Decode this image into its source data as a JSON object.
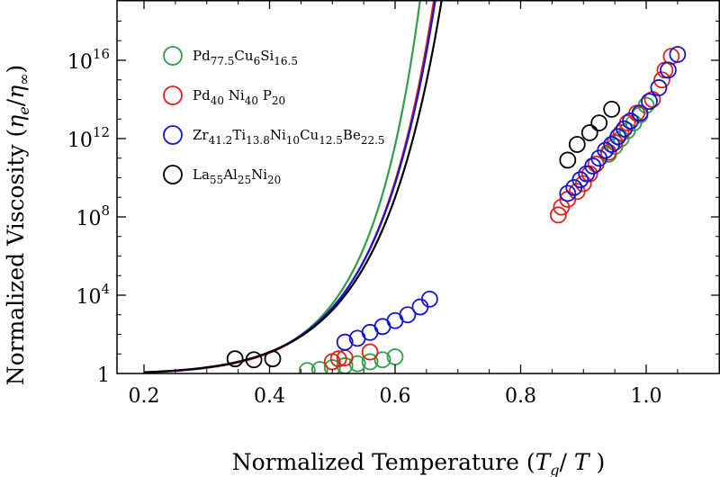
{
  "chart_data": {
    "type": "scatter",
    "xlabel": "Normalized Temperature (T_g/ T )",
    "xlabel_parts": {
      "prefix": "Normalized Temperature (",
      "var1": "T",
      "sub1": "g",
      "sep": "/ ",
      "var2": "T",
      "suffix": " )"
    },
    "ylabel": "Normalized Viscosity (η_e/η_∞)",
    "ylabel_parts": {
      "prefix": "Normalized Viscosity (",
      "num": "η",
      "num_sub": "e",
      "sep": "/",
      "den": "η",
      "den_sub": "∞",
      "suffix": ")"
    },
    "xlim": [
      0.2,
      1.1
    ],
    "ylim_log10": [
      0,
      18.5
    ],
    "x_ticks": [
      {
        "value": 0.2,
        "label": "0.2"
      },
      {
        "value": 0.4,
        "label": "0.4"
      },
      {
        "value": 0.6,
        "label": "0.6"
      },
      {
        "value": 0.8,
        "label": "0.8"
      },
      {
        "value": 1.0,
        "label": "1.0"
      }
    ],
    "y_ticks": [
      {
        "log10": 0,
        "base": "1",
        "exp": ""
      },
      {
        "log10": 4,
        "base": "10",
        "exp": "4"
      },
      {
        "log10": 8,
        "base": "10",
        "exp": "8"
      },
      {
        "log10": 12,
        "base": "10",
        "exp": "12"
      },
      {
        "log10": 16,
        "base": "10",
        "exp": "16"
      }
    ],
    "legend_position": "top-left",
    "series": [
      {
        "name": "Pd77.5Cu6Si16.5",
        "label_parts": [
          [
            "Pd",
            ""
          ],
          [
            "",
            "77.5"
          ],
          [
            "Cu",
            ""
          ],
          [
            "",
            "6"
          ],
          [
            "Si",
            ""
          ],
          [
            "",
            "16.5"
          ]
        ],
        "color": "#2e9e47",
        "fit": {
          "a": 1.02,
          "b": 0.032,
          "D": 3.0,
          "x_end": 1.083
        },
        "points_x": [
          0.46,
          0.48,
          0.5,
          0.52,
          0.54,
          0.56,
          0.58,
          0.6,
          0.94,
          0.95,
          0.96,
          0.97,
          0.98,
          0.99,
          1.0
        ],
        "points_log10": [
          0.15,
          0.2,
          0.3,
          0.4,
          0.5,
          0.6,
          0.7,
          0.85,
          11.2,
          11.6,
          12.0,
          12.4,
          12.8,
          13.2,
          13.7
        ]
      },
      {
        "name": "Pd40Ni40P20",
        "label_parts": [
          [
            "Pd",
            ""
          ],
          [
            "",
            "40"
          ],
          [
            " Ni",
            ""
          ],
          [
            "",
            "40"
          ],
          [
            " P",
            ""
          ],
          [
            "",
            "20"
          ]
        ],
        "color": "#e0221b",
        "fit": {
          "a": 1.2,
          "b": 0.056,
          "D": 3.21,
          "x_end": 1.075
        },
        "points_x": [
          0.5,
          0.51,
          0.52,
          0.56,
          0.86,
          0.865,
          0.875,
          0.89,
          0.9,
          0.91,
          0.92,
          0.94,
          0.95,
          0.96,
          0.97,
          0.985,
          1.01,
          1.025,
          1.03,
          1.04
        ],
        "points_log10": [
          0.6,
          0.75,
          0.8,
          1.1,
          8.1,
          8.5,
          8.9,
          9.3,
          9.7,
          10.2,
          10.7,
          11.3,
          11.8,
          12.3,
          12.8,
          13.3,
          14.0,
          15.0,
          15.5,
          16.2
        ]
      },
      {
        "name": "Zr41.2Ti13.8Ni10Cu12.5Be22.5",
        "label_parts": [
          [
            "Zr",
            ""
          ],
          [
            "",
            "41.2"
          ],
          [
            "Ti",
            ""
          ],
          [
            "",
            "13.8"
          ],
          [
            "Ni",
            ""
          ],
          [
            "",
            "10"
          ],
          [
            "Cu",
            ""
          ],
          [
            "",
            "12.5"
          ],
          [
            "Be",
            ""
          ],
          [
            "",
            "22.5"
          ]
        ],
        "color": "#1414d2",
        "fit": {
          "a": 1.2,
          "b": 0.061,
          "D": 3.15,
          "x_end": 1.1
        },
        "points_x": [
          0.52,
          0.54,
          0.56,
          0.58,
          0.6,
          0.62,
          0.64,
          0.655,
          0.875,
          0.885,
          0.895,
          0.905,
          0.915,
          0.925,
          0.935,
          0.945,
          0.955,
          0.965,
          0.975,
          0.99,
          1.005,
          1.02,
          1.035,
          1.05
        ],
        "points_log10": [
          1.6,
          1.8,
          2.1,
          2.4,
          2.7,
          3.0,
          3.4,
          3.8,
          9.2,
          9.5,
          9.9,
          10.2,
          10.6,
          11.0,
          11.4,
          11.7,
          12.1,
          12.5,
          12.9,
          13.3,
          13.9,
          14.6,
          15.5,
          16.3
        ]
      },
      {
        "name": "La55Al25Ni20",
        "label_parts": [
          [
            "La",
            ""
          ],
          [
            "",
            "55"
          ],
          [
            "Al",
            ""
          ],
          [
            "",
            "25"
          ],
          [
            "Ni",
            ""
          ],
          [
            "",
            "20"
          ]
        ],
        "color": "#000000",
        "fit": {
          "a": 1.22,
          "b": 0.07,
          "D": 3.08,
          "x_end": 1.1
        },
        "points_x": [
          0.345,
          0.375,
          0.405,
          0.875,
          0.89,
          0.91,
          0.925,
          0.945
        ],
        "points_log10": [
          0.75,
          0.7,
          0.75,
          10.9,
          11.7,
          12.3,
          12.8,
          13.5
        ]
      }
    ]
  }
}
